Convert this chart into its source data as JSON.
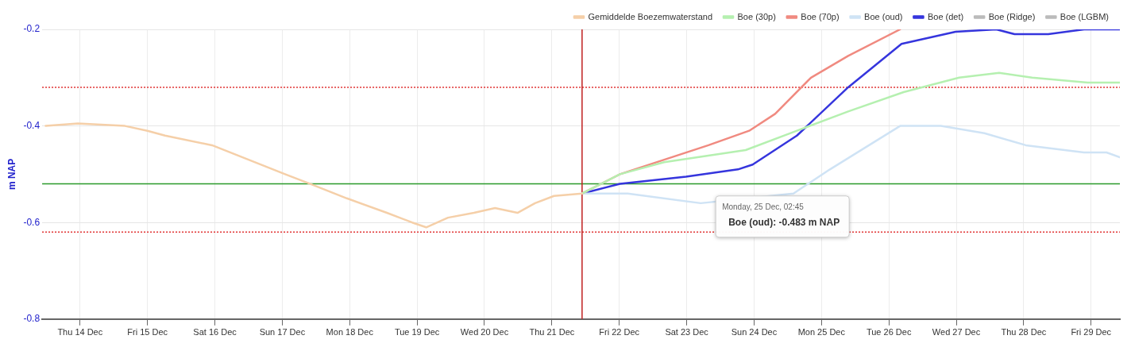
{
  "chart_data": {
    "type": "line",
    "ylabel": "m NAP",
    "xlim": [
      "--12-13T10:30",
      "--12-29T10:15"
    ],
    "xticks": [
      {
        "value": "--12-14",
        "label": "Thu 14 Dec"
      },
      {
        "value": "--12-15",
        "label": "Fri 15 Dec"
      },
      {
        "value": "--12-16",
        "label": "Sat 16 Dec"
      },
      {
        "value": "--12-17",
        "label": "Sun 17 Dec"
      },
      {
        "value": "--12-18",
        "label": "Mon 18 Dec"
      },
      {
        "value": "--12-19",
        "label": "Tue 19 Dec"
      },
      {
        "value": "--12-20",
        "label": "Wed 20 Dec"
      },
      {
        "value": "--12-21",
        "label": "Thu 21 Dec"
      },
      {
        "value": "--12-22",
        "label": "Fri 22 Dec"
      },
      {
        "value": "--12-23",
        "label": "Sat 23 Dec"
      },
      {
        "value": "--12-24",
        "label": "Sun 24 Dec"
      },
      {
        "value": "--12-25",
        "label": "Mon 25 Dec"
      },
      {
        "value": "--12-26",
        "label": "Tue 26 Dec"
      },
      {
        "value": "--12-27",
        "label": "Wed 27 Dec"
      },
      {
        "value": "--12-28",
        "label": "Thu 28 Dec"
      },
      {
        "value": "--12-29",
        "label": "Fri 29 Dec"
      }
    ],
    "ylim": [
      -0.8,
      -0.2
    ],
    "yticks": [
      -0.8,
      -0.6,
      -0.4,
      -0.2
    ],
    "grid": true,
    "legend": "top right",
    "marker": "none",
    "line_style": "solid",
    "series": [
      {
        "name": "Gemiddelde Boezemwaterstand",
        "color": "#f5cfa8",
        "x": [
          "--12-13T11:45",
          "--12-13T23:15",
          "--12-14T16:00",
          "--12-15T00:00",
          "--12-15T06:15",
          "--12-15T23:00",
          "--12-16T12:00",
          "--12-17T01:00",
          "--12-17T10:00",
          "--12-17T23:00",
          "--12-18T13:15",
          "--12-18T22:15",
          "--12-19T03:15",
          "--12-19T11:00",
          "--12-19T20:15",
          "--12-20T03:45",
          "--12-20T11:45",
          "--12-20T18:00",
          "--12-21T00:45",
          "--12-21T10:45"
        ],
        "values": [
          -0.4,
          -0.395,
          -0.4,
          -0.41,
          -0.42,
          -0.44,
          -0.47,
          -0.5,
          -0.52,
          -0.55,
          -0.58,
          -0.6,
          -0.61,
          -0.59,
          -0.58,
          -0.57,
          -0.58,
          -0.56,
          -0.545,
          -0.54
        ]
      },
      {
        "name": "Boe (30p)",
        "color": "#b5f0b0",
        "x": [
          "--12-21T10:45",
          "--12-22T00:15",
          "--12-22T16:00",
          "--12-23T21:00",
          "--12-24T15:15",
          "--12-25T09:30",
          "--12-26T05:15",
          "--12-27T01:00",
          "--12-27T15:15",
          "--12-28T03:00",
          "--12-28T22:45",
          "--12-29T10:15"
        ],
        "values": [
          -0.54,
          -0.5,
          -0.475,
          -0.45,
          -0.41,
          -0.37,
          -0.33,
          -0.3,
          -0.29,
          -0.3,
          -0.31,
          -0.31
        ]
      },
      {
        "name": "Boe (70p)",
        "color": "#f08a80",
        "x": [
          "--12-21T10:45",
          "--12-22T00:15",
          "--12-22T16:00",
          "--12-23T07:45",
          "--12-23T22:15",
          "--12-24T07:30",
          "--12-24T20:15",
          "--12-25T09:30",
          "--12-26T04:00"
        ],
        "values": [
          -0.54,
          -0.5,
          -0.47,
          -0.44,
          -0.41,
          -0.375,
          -0.3,
          -0.255,
          -0.2
        ]
      },
      {
        "name": "Boe (oud)",
        "color": "#cfe3f5",
        "x": [
          "--12-21T10:45",
          "--12-22T03:00",
          "--12-23T05:00",
          "--12-24T14:00",
          "--12-25T03:00",
          "--12-26T04:00",
          "--12-26T18:30",
          "--12-27T10:00",
          "--12-28T00:45",
          "--12-28T21:30",
          "--12-29T05:30",
          "--12-29T10:15"
        ],
        "values": [
          -0.54,
          -0.54,
          -0.56,
          -0.54,
          -0.49,
          -0.4,
          -0.4,
          -0.415,
          -0.44,
          -0.455,
          -0.455,
          -0.465
        ]
      },
      {
        "name": "Boe (det)",
        "color": "#3535dd",
        "x": [
          "--12-21T10:45",
          "--12-22T00:15",
          "--12-22T23:45",
          "--12-23T18:15",
          "--12-23T23:30",
          "--12-24T15:15",
          "--12-25T09:30",
          "--12-26T04:30",
          "--12-26T23:45",
          "--12-27T14:15",
          "--12-27T20:45",
          "--12-28T08:45",
          "--12-28T21:30",
          "--12-29T10:15"
        ],
        "values": [
          -0.54,
          -0.52,
          -0.505,
          -0.49,
          -0.48,
          -0.42,
          -0.32,
          -0.23,
          -0.205,
          -0.2,
          -0.21,
          -0.21,
          -0.2,
          -0.2
        ]
      },
      {
        "name": "Boe (Ridge)",
        "color": "#bbbbbb"
      },
      {
        "name": "Boe (LGBM)",
        "color": "#bbbbbb"
      }
    ],
    "ref_lines": [
      {
        "axis": "y",
        "value": -0.32,
        "color": "#e03030",
        "line_style": "dotted"
      },
      {
        "axis": "y",
        "value": -0.52,
        "color": "#2a9a2a",
        "line_style": "solid"
      },
      {
        "axis": "y",
        "value": -0.62,
        "color": "#e03030",
        "line_style": "dotted"
      },
      {
        "axis": "x",
        "value": "--12-21T10:45",
        "color": "#c02020",
        "line_style": "solid"
      }
    ],
    "annotations": [
      "Monday, 25 Dec, 02:45",
      "Boe (oud): -0.483 m NAP"
    ]
  }
}
